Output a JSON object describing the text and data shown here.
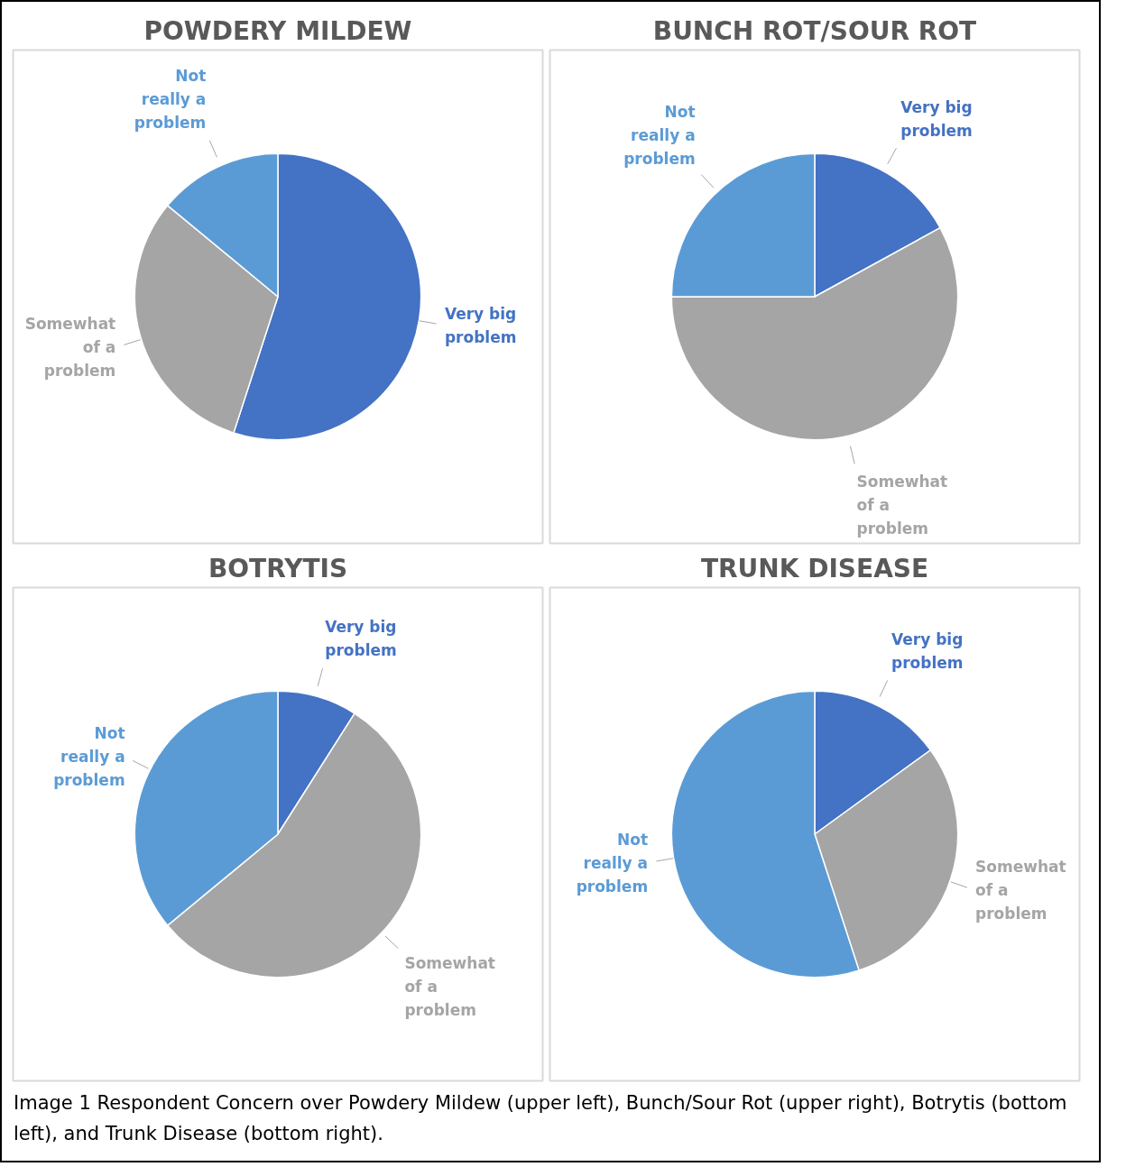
{
  "chart_data": [
    {
      "type": "pie",
      "title": "POWDERY MILDEW",
      "categories": [
        "Very big problem",
        "Somewhat of a problem",
        "Not really a problem"
      ],
      "values": [
        55,
        31,
        14
      ],
      "colors": [
        "#4472c4",
        "#a5a5a5",
        "#5b9bd5"
      ]
    },
    {
      "type": "pie",
      "title": "BUNCH ROT/SOUR ROT",
      "categories": [
        "Very big problem",
        "Somewhat of a problem",
        "Not really a problem"
      ],
      "values": [
        17,
        58,
        25
      ],
      "colors": [
        "#4472c4",
        "#a5a5a5",
        "#5b9bd5"
      ]
    },
    {
      "type": "pie",
      "title": "BOTRYTIS",
      "categories": [
        "Very big problem",
        "Somewhat of a problem",
        "Not really a problem"
      ],
      "values": [
        9,
        55,
        36
      ],
      "colors": [
        "#4472c4",
        "#a5a5a5",
        "#5b9bd5"
      ]
    },
    {
      "type": "pie",
      "title": "TRUNK DISEASE",
      "categories": [
        "Very big problem",
        "Somewhat of a problem",
        "Not really a problem"
      ],
      "values": [
        15,
        30,
        55
      ],
      "colors": [
        "#4472c4",
        "#a5a5a5",
        "#5b9bd5"
      ],
      "annotations": [
        "Image 1 Respondent Concern over Powdery Mildew (upper left), Bunch/Sour Rot (upper right), Botrytis (bottom left), and Trunk Disease (bottom right)."
      ]
    }
  ]
}
